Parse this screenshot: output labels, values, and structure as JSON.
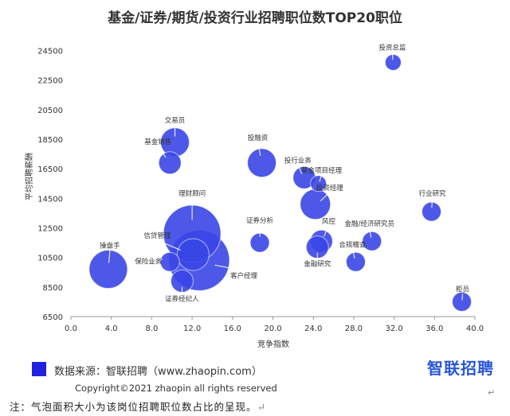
{
  "chart_data": {
    "type": "scatter",
    "title": "基金/证券/期货/投资行业招聘职位数TOP20职位",
    "xlabel": "竞争指数",
    "ylabel": "平均招聘薪酬",
    "xlim": [
      0,
      40
    ],
    "ylim": [
      6500,
      25500
    ],
    "x_ticks": [
      "0.0",
      "4.0",
      "8.0",
      "12.0",
      "16.0",
      "20.0",
      "24.0",
      "28.0",
      "32.0",
      "36.0",
      "40.0"
    ],
    "y_ticks": [
      "6500",
      "8500",
      "10500",
      "12500",
      "14500",
      "16500",
      "18500",
      "20500",
      "22500",
      "24500"
    ],
    "grid": false,
    "bubble_color": "#3a46e6",
    "points": [
      {
        "name": "投资总监",
        "x": 31.9,
        "y": 23700,
        "size": 10
      },
      {
        "name": "交易员",
        "x": 10.3,
        "y": 18300,
        "size": 18
      },
      {
        "name": "基金销售",
        "x": 9.8,
        "y": 16900,
        "size": 14
      },
      {
        "name": "投融资",
        "x": 18.9,
        "y": 16900,
        "size": 18
      },
      {
        "name": "投行业务",
        "x": 23.1,
        "y": 15900,
        "size": 14
      },
      {
        "name": "基金项目经理",
        "x": 24.5,
        "y": 15500,
        "size": 10
      },
      {
        "name": "投资经理",
        "x": 24.2,
        "y": 14100,
        "size": 19
      },
      {
        "name": "行业研究",
        "x": 35.7,
        "y": 13600,
        "size": 12
      },
      {
        "name": "理财顾问",
        "x": 12.0,
        "y": 12100,
        "size": 36
      },
      {
        "name": "证券分析",
        "x": 18.7,
        "y": 11500,
        "size": 12
      },
      {
        "name": "风控",
        "x": 24.8,
        "y": 11600,
        "size": 14
      },
      {
        "name": "金融/经济研究员",
        "x": 29.8,
        "y": 11600,
        "size": 12
      },
      {
        "name": "金融研究",
        "x": 24.4,
        "y": 11200,
        "size": 14
      },
      {
        "name": "合规稽查",
        "x": 28.2,
        "y": 10200,
        "size": 12
      },
      {
        "name": "信贷管理",
        "x": 12.1,
        "y": 10700,
        "size": 20
      },
      {
        "name": "客户经理",
        "x": 12.7,
        "y": 10300,
        "size": 38
      },
      {
        "name": "保险业务",
        "x": 9.8,
        "y": 10200,
        "size": 12
      },
      {
        "name": "操盘手",
        "x": 3.7,
        "y": 9700,
        "size": 24
      },
      {
        "name": "证券经纪人",
        "x": 11.0,
        "y": 8900,
        "size": 14
      },
      {
        "name": "柜员",
        "x": 38.7,
        "y": 7500,
        "size": 12
      }
    ]
  },
  "footer": {
    "legend_text": "数据来源：智联招聘（www.zhaopin.com）",
    "legend_color": "#2020e0",
    "brand_logo": "智联招聘",
    "copyright": "Copyright©2021 zhaopin all rights reserved",
    "note": "注：气泡面积大小为该岗位招聘职位数占比的呈现。",
    "return_mark_top": "↵",
    "return_mark_note": "↵"
  }
}
